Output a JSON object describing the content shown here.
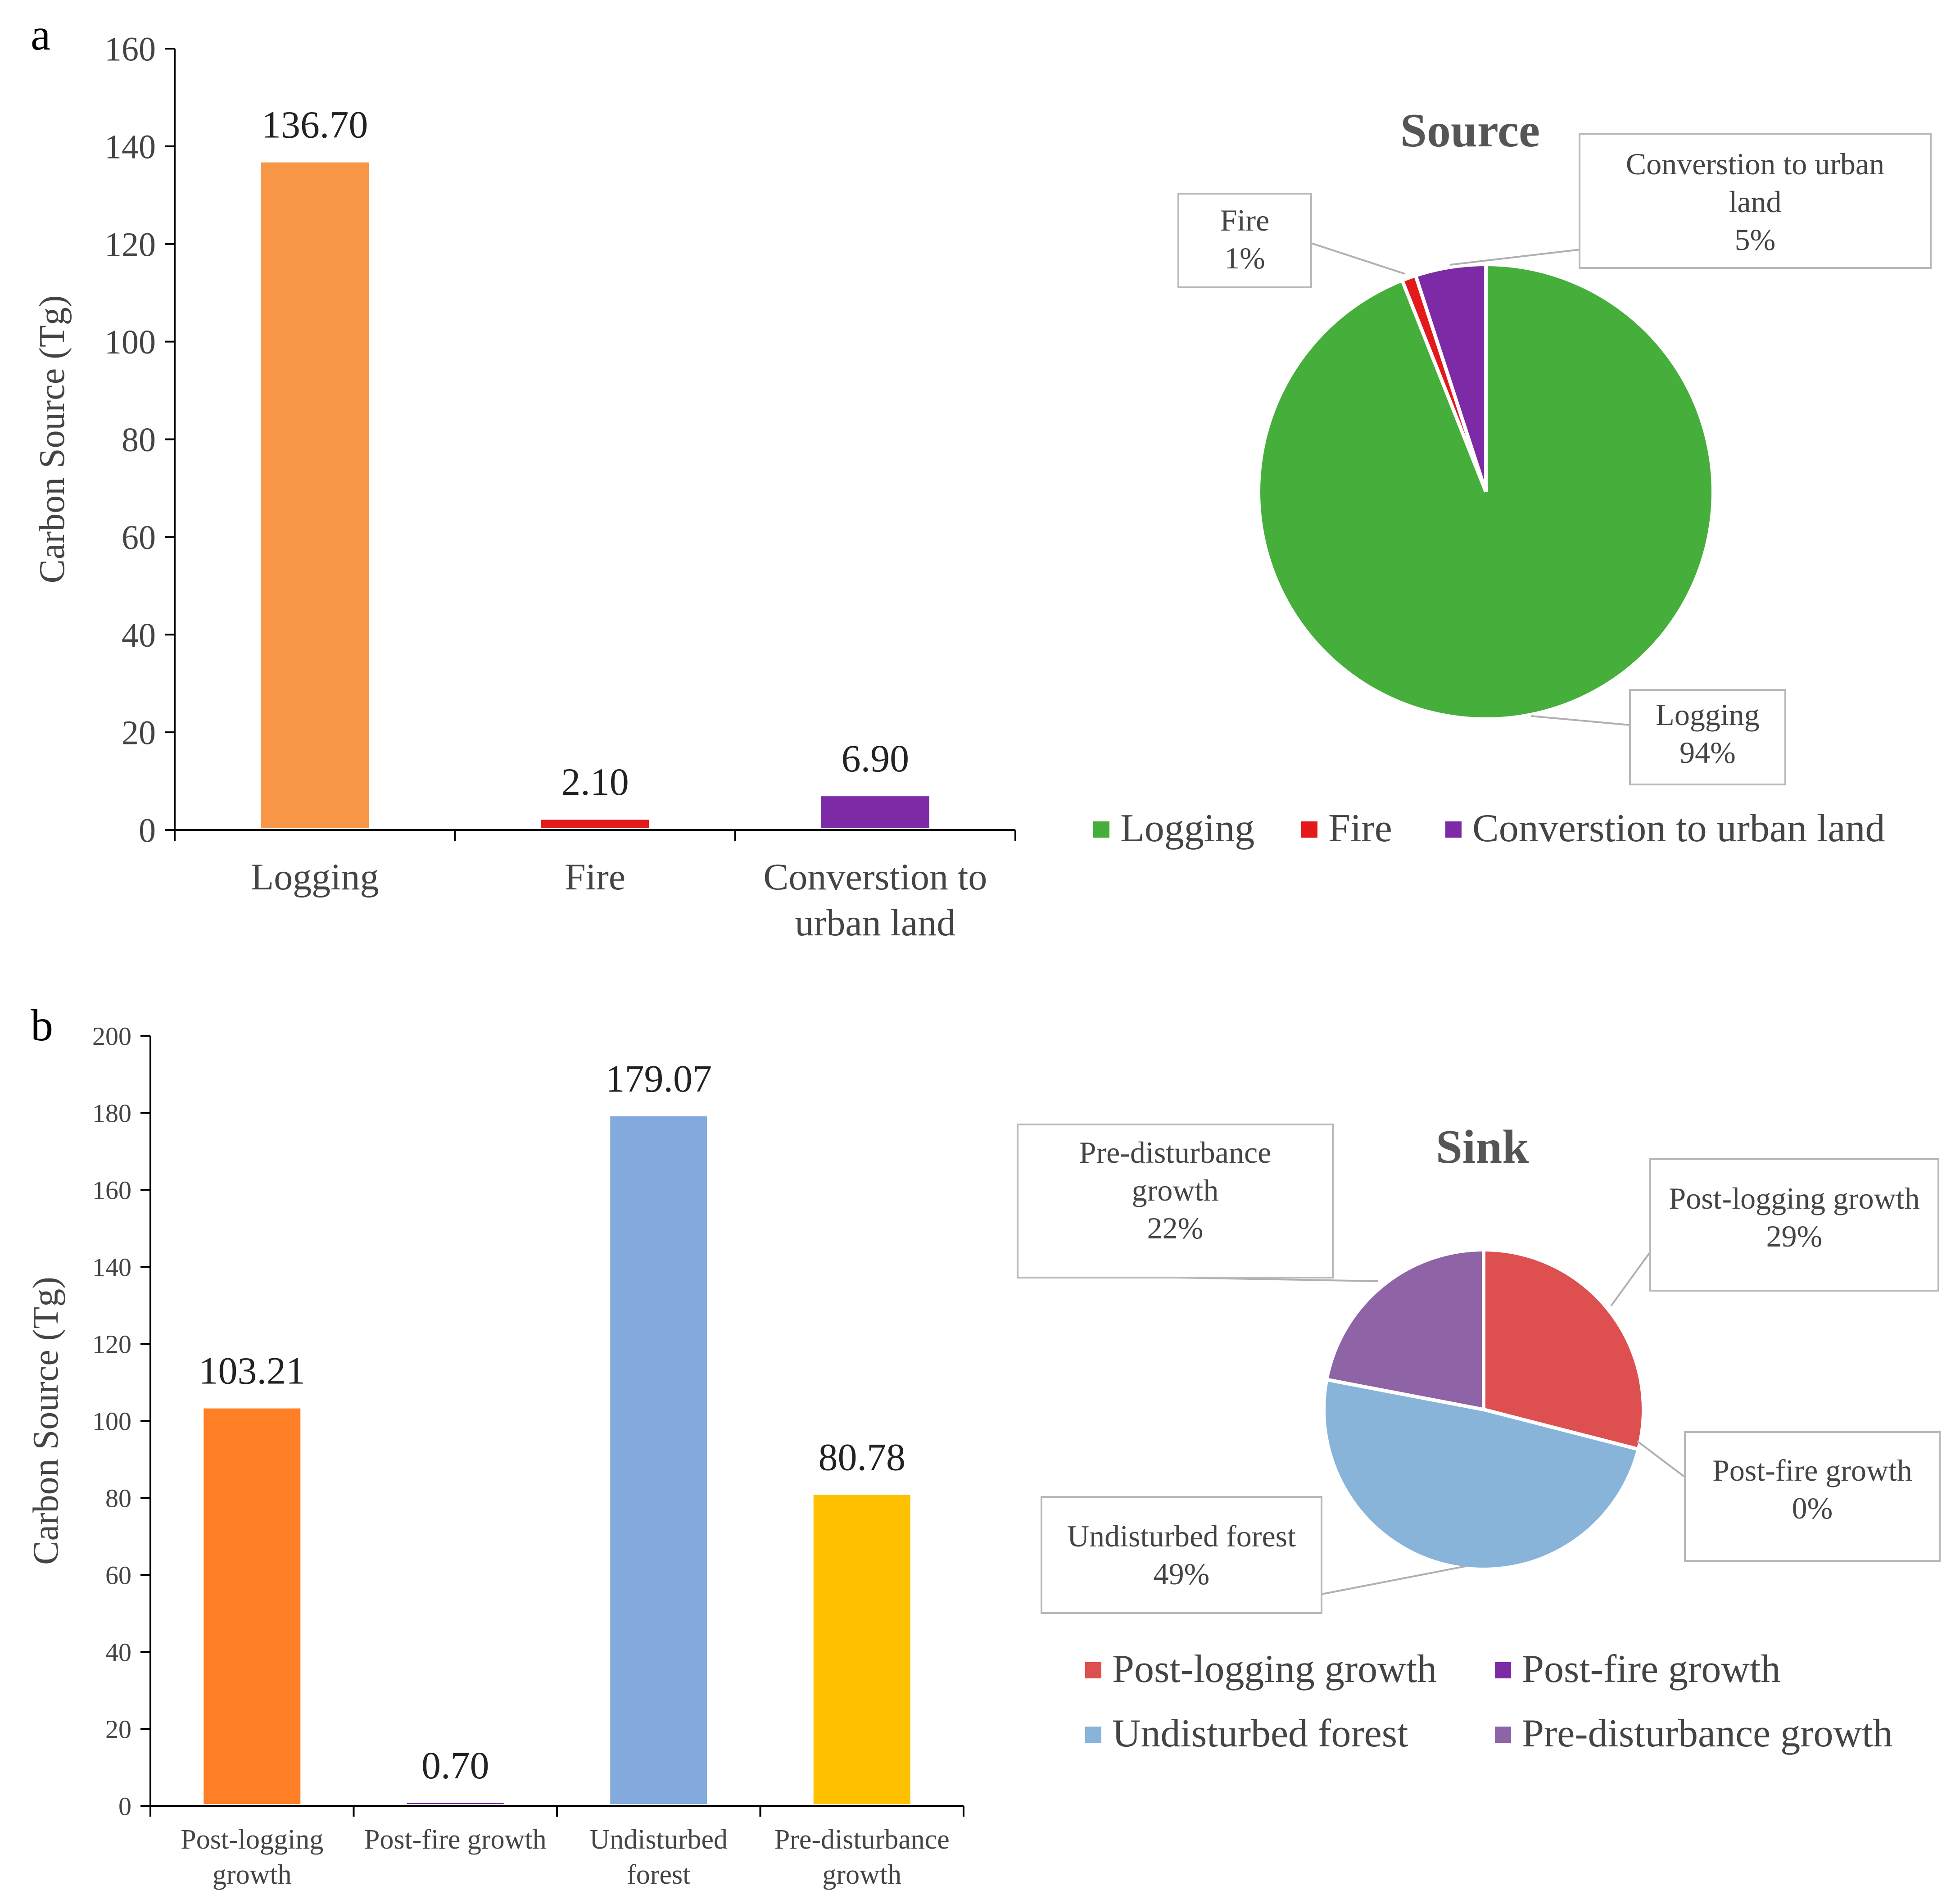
{
  "panel_labels": {
    "a": "a",
    "b": "b"
  },
  "chart_data": [
    {
      "id": "a-bar",
      "type": "bar",
      "title": "",
      "xlabel": "",
      "ylabel": "Carbon Source (Tg)",
      "ylim": [
        0,
        160
      ],
      "yticks": [
        "0",
        "20",
        "40",
        "60",
        "80",
        "100",
        "120",
        "140",
        "160"
      ],
      "categories": [
        [
          "Logging"
        ],
        [
          "Fire"
        ],
        [
          "Converstion to",
          "urban land"
        ]
      ],
      "values": [
        136.7,
        2.1,
        6.9
      ],
      "value_labels": [
        "136.70",
        "2.10",
        "6.90"
      ],
      "colors": [
        "#F79646",
        "#E31A1C",
        "#7D2AA6"
      ],
      "grid": false
    },
    {
      "id": "a-pie",
      "type": "pie",
      "title": "Source",
      "slices": [
        {
          "label": "Logging",
          "value": 94,
          "pct": "94%",
          "color": "#46AF3C",
          "callout": [
            "Logging",
            "94%"
          ]
        },
        {
          "label": "Fire",
          "value": 1,
          "pct": "1%",
          "color": "#E31A1C",
          "callout": [
            "Fire",
            "1%"
          ]
        },
        {
          "label": "Converstion to urban land",
          "value": 5,
          "pct": "5%",
          "color": "#7D2AA6",
          "callout": [
            "Converstion to urban",
            "land",
            "5%"
          ]
        }
      ],
      "legend": [
        "Logging",
        "Fire",
        "Converstion to urban land"
      ],
      "legend_position": "bottom"
    },
    {
      "id": "b-bar",
      "type": "bar",
      "title": "",
      "xlabel": "",
      "ylabel": "Carbon Source (Tg)",
      "ylim": [
        0,
        200
      ],
      "yticks": [
        "0",
        "20",
        "40",
        "60",
        "80",
        "100",
        "120",
        "140",
        "160",
        "180",
        "200"
      ],
      "categories": [
        [
          "Post-logging",
          "growth"
        ],
        [
          "Post-fire growth"
        ],
        [
          "Undisturbed",
          "forest"
        ],
        [
          "Pre-disturbance",
          "growth"
        ]
      ],
      "values": [
        103.21,
        0.7,
        179.07,
        80.78
      ],
      "value_labels": [
        "103.21",
        "0.70",
        "179.07",
        "80.78"
      ],
      "colors": [
        "#FF7F27",
        "#7D2AA6",
        "#82AADD",
        "#FFC000"
      ],
      "grid": false
    },
    {
      "id": "b-pie",
      "type": "pie",
      "title": "Sink",
      "slices": [
        {
          "label": "Post-logging growth",
          "value": 29,
          "pct": "29%",
          "color": "#DD504F",
          "callout": [
            "Post-logging growth",
            "29%"
          ]
        },
        {
          "label": "Post-fire growth",
          "value": 0,
          "pct": "0%",
          "color": "#7D2AA6",
          "callout": [
            "Post-fire growth",
            "0%"
          ]
        },
        {
          "label": "Undisturbed forest",
          "value": 49,
          "pct": "49%",
          "color": "#89B4DA",
          "callout": [
            "Undisturbed forest",
            "49%"
          ]
        },
        {
          "label": "Pre-disturbance growth",
          "value": 22,
          "pct": "22%",
          "color": "#8E64A6",
          "callout": [
            "Pre-disturbance",
            "growth",
            "22%"
          ]
        }
      ],
      "legend": [
        "Post-logging growth",
        "Post-fire growth",
        "Undisturbed forest",
        "Pre-disturbance growth"
      ],
      "legend_position": "bottom"
    }
  ]
}
